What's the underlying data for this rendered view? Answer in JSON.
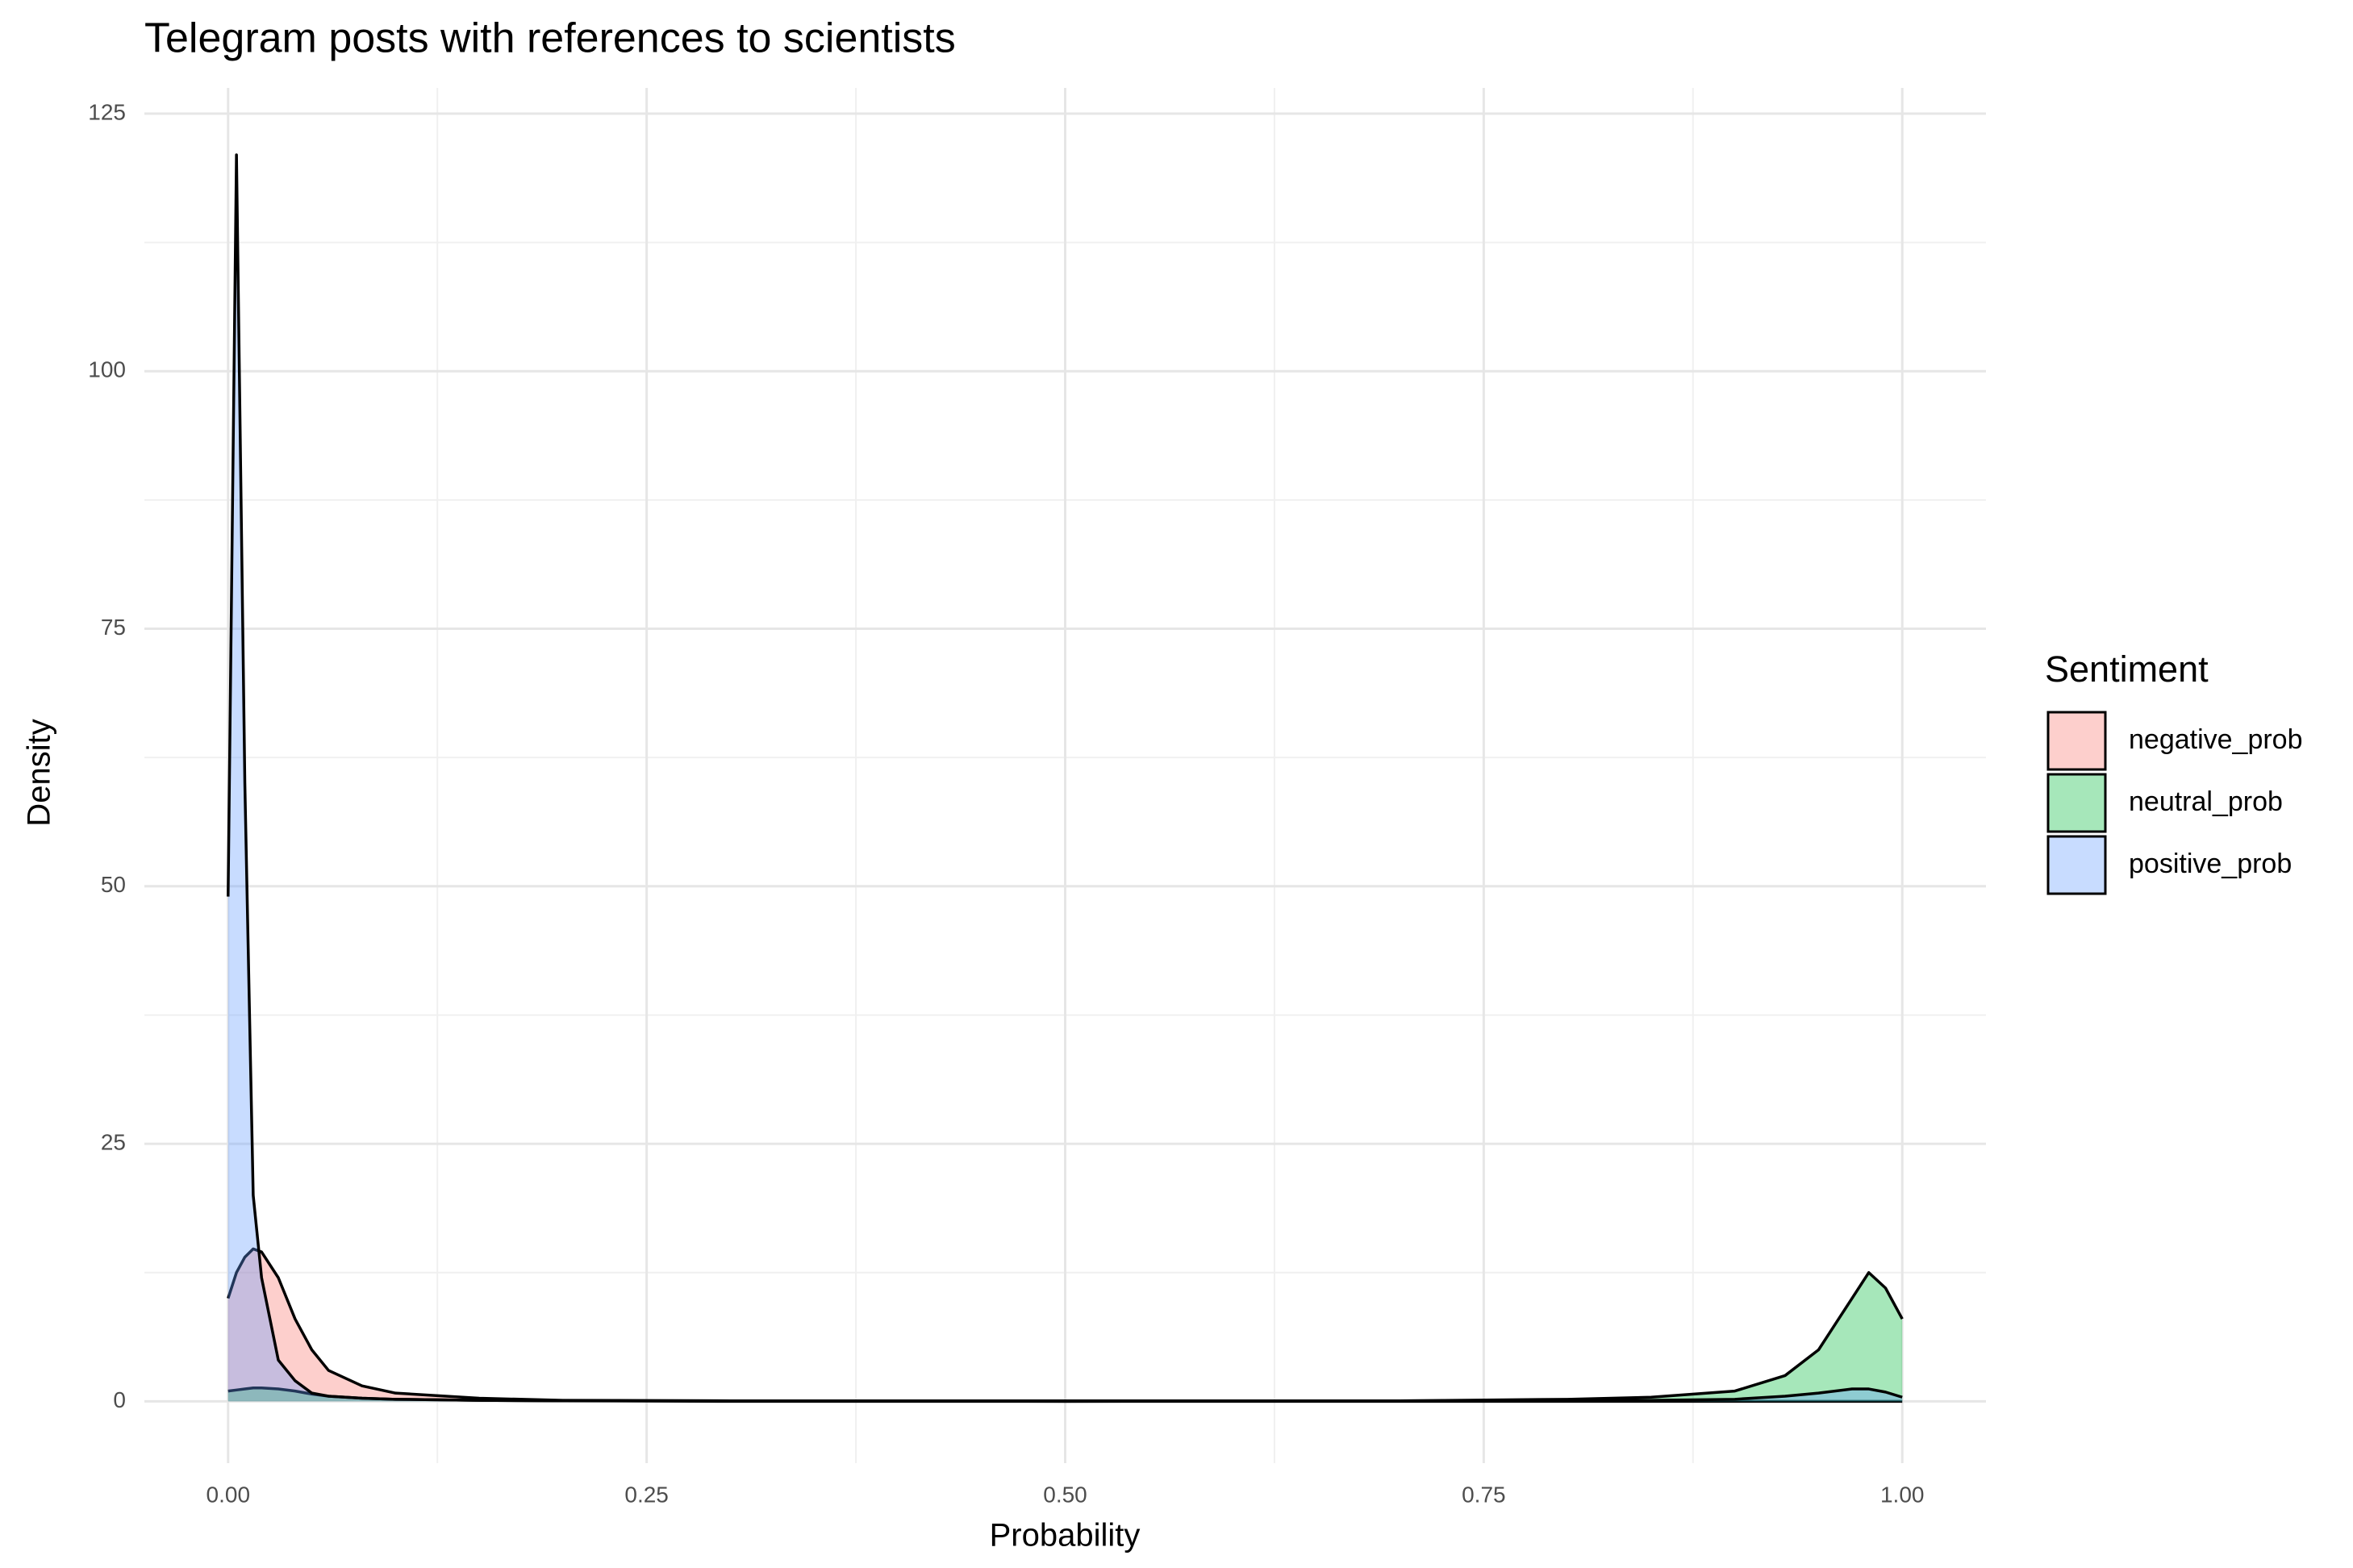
{
  "chart_data": {
    "type": "density",
    "title": "Telegram posts with references to scientists",
    "x_label": "Probability",
    "y_label": "Density",
    "legend_title": "Sentiment",
    "legend_position": "right",
    "grid": true,
    "minor_grid": true,
    "xlim": [
      -0.05,
      1.05
    ],
    "ylim": [
      -6,
      127.5
    ],
    "xticks": [
      {
        "value": 0,
        "label": "0.00"
      },
      {
        "value": 0.25,
        "label": "0.25"
      },
      {
        "value": 0.5,
        "label": "0.50"
      },
      {
        "value": 0.75,
        "label": "0.75"
      },
      {
        "value": 1,
        "label": "1.00"
      }
    ],
    "yticks": [
      0,
      25,
      50,
      75,
      100,
      125
    ],
    "x": [
      0,
      0.005,
      0.01,
      0.015,
      0.02,
      0.03,
      0.04,
      0.05,
      0.06,
      0.08,
      0.1,
      0.15,
      0.2,
      0.3,
      0.5,
      0.7,
      0.8,
      0.85,
      0.9,
      0.93,
      0.95,
      0.97,
      0.98,
      0.99,
      1
    ],
    "series": [
      {
        "name": "negative_prob",
        "color": "#f8766d",
        "values": [
          10,
          12.5,
          14,
          14.8,
          14.5,
          12,
          8,
          5,
          3,
          1.5,
          0.8,
          0.3,
          0.1,
          0.05,
          0,
          0,
          0,
          0,
          0,
          0,
          0,
          0,
          0,
          0,
          0
        ]
      },
      {
        "name": "neutral_prob",
        "color": "#00ba38",
        "values": [
          1,
          1.1,
          1.2,
          1.3,
          1.3,
          1.2,
          1,
          0.7,
          0.5,
          0.3,
          0.2,
          0.1,
          0.05,
          0,
          0,
          0.05,
          0.2,
          0.4,
          1,
          2.5,
          5,
          10,
          12.5,
          11,
          8
        ]
      },
      {
        "name": "positive_prob",
        "color": "#619cff",
        "values": [
          49,
          121,
          60,
          20,
          12,
          4,
          2,
          0.8,
          0.5,
          0.3,
          0.2,
          0.1,
          0.05,
          0.05,
          0.05,
          0.05,
          0.1,
          0.1,
          0.2,
          0.5,
          0.8,
          1.2,
          1.2,
          0.9,
          0.4
        ]
      }
    ]
  }
}
